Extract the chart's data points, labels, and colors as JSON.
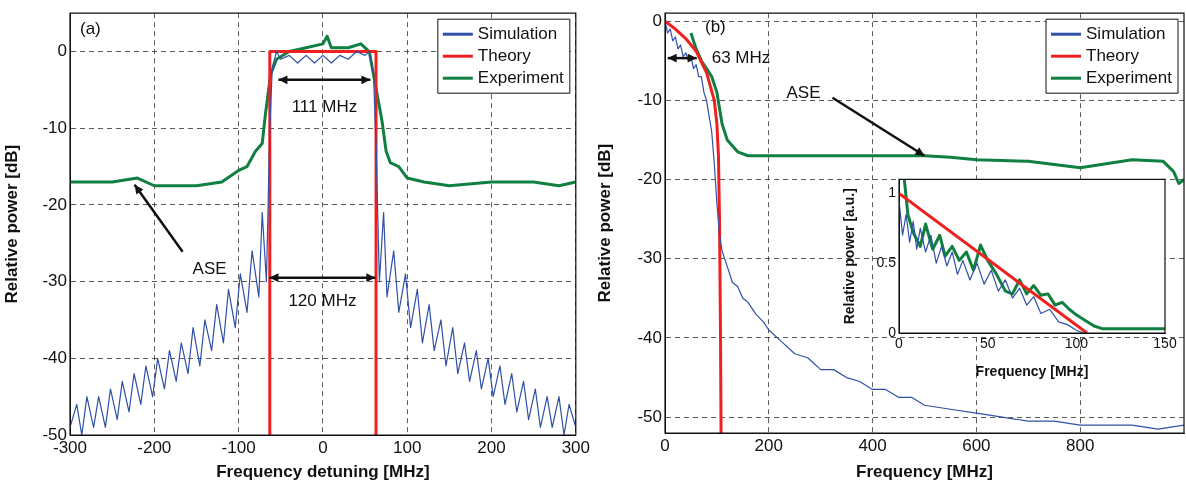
{
  "chart_data": [
    {
      "type": "line",
      "xlabel": "Frequency detuning [MHz]",
      "ylabel": "Relative power [dB]",
      "xlim": [
        -300,
        300
      ],
      "xticks": [
        -300,
        -200,
        -100,
        0,
        100,
        200,
        300
      ],
      "ylim": [
        -50,
        5
      ],
      "yticks": [
        -50,
        -40,
        -30,
        -20,
        -10,
        0
      ],
      "grid": true,
      "legend": "top right",
      "annotations": [
        "(a)",
        "111 MHz",
        "120 MHz",
        "ASE"
      ],
      "series": [
        {
          "name": "Simulation",
          "color": "#3050a8",
          "x": [
            -300,
            -292,
            -286,
            -280,
            -272,
            -266,
            -258,
            -252,
            -244,
            -238,
            -230,
            -224,
            -216,
            -210,
            -202,
            -196,
            -188,
            -182,
            -174,
            -168,
            -160,
            -154,
            -146,
            -140,
            -132,
            -126,
            -118,
            -112,
            -104,
            -98,
            -90,
            -84,
            -76,
            -72,
            -67,
            -63,
            -60,
            -55,
            -50,
            -40,
            -30,
            -20,
            -10,
            0,
            10,
            20,
            30,
            40,
            50,
            55,
            60,
            63,
            67,
            72,
            76,
            84,
            90,
            98,
            104,
            112,
            118,
            126,
            132,
            140,
            146,
            154,
            160,
            168,
            174,
            182,
            188,
            196,
            202,
            210,
            216,
            224,
            230,
            238,
            244,
            252,
            258,
            266,
            272,
            280,
            286,
            292,
            300
          ],
          "values": [
            -49,
            -46,
            -50,
            -45,
            -49,
            -45,
            -49,
            -44,
            -48,
            -43,
            -47,
            -42,
            -46,
            -41,
            -45,
            -40,
            -44,
            -39,
            -43,
            -38,
            -42,
            -36,
            -41,
            -35,
            -39,
            -33,
            -38,
            -31,
            -36,
            -29,
            -34,
            -26,
            -32,
            -21,
            -30,
            -10,
            -2,
            0,
            -1,
            -0.5,
            -1.5,
            -0.5,
            -1.5,
            -0.5,
            -1.5,
            -0.5,
            -1,
            0,
            -0.5,
            0,
            -3,
            -12,
            -30,
            -21,
            -32,
            -26,
            -34,
            -29,
            -36,
            -31,
            -38,
            -33,
            -39,
            -35,
            -41,
            -36,
            -42,
            -38,
            -43,
            -39,
            -44,
            -40,
            -45,
            -41,
            -46,
            -42,
            -47,
            -43,
            -48,
            -44,
            -49,
            -45,
            -49,
            -45,
            -50,
            -46,
            -49
          ]
        },
        {
          "name": "Theory",
          "color": "#ee2020",
          "x": [
            -63,
            -63,
            63,
            63
          ],
          "values": [
            -50,
            0,
            0,
            -50
          ]
        },
        {
          "name": "Experiment",
          "color": "#108040",
          "x": [
            -300,
            -250,
            -220,
            -200,
            -150,
            -120,
            -100,
            -90,
            -80,
            -72,
            -68,
            -62,
            -55,
            -40,
            -20,
            0,
            5,
            10,
            30,
            45,
            55,
            60,
            65,
            70,
            75,
            80,
            90,
            100,
            120,
            150,
            200,
            250,
            280,
            300
          ],
          "values": [
            -17,
            -17,
            -16.5,
            -17.5,
            -17.5,
            -17,
            -15.5,
            -15,
            -13,
            -12,
            -8,
            -3,
            -1,
            0,
            0.5,
            1,
            2,
            0.5,
            0.5,
            1,
            0,
            -3,
            -6,
            -9,
            -13,
            -14.5,
            -15,
            -16.5,
            -17,
            -17.5,
            -17,
            -17,
            -17.5,
            -17
          ]
        }
      ]
    },
    {
      "type": "line",
      "xlabel": "Frequency [MHz]",
      "ylabel": "Relative power [dB]",
      "xlim": [
        0,
        1000
      ],
      "xticks": [
        0,
        200,
        400,
        600,
        800
      ],
      "ylim": [
        -52,
        1
      ],
      "yticks": [
        -50,
        -40,
        -30,
        -20,
        -10,
        0
      ],
      "grid": true,
      "legend": "top right",
      "annotations": [
        "(b)",
        "63 MHz",
        {
          "text": "ASE",
          "x": 500,
          "y": -17
        }
      ],
      "series": [
        {
          "name": "Simulation",
          "color": "#3050a8",
          "x": [
            0,
            5,
            10,
            15,
            20,
            25,
            30,
            35,
            40,
            45,
            50,
            55,
            60,
            65,
            70,
            75,
            80,
            85,
            90,
            95,
            100,
            105,
            110,
            120,
            130,
            140,
            150,
            160,
            175,
            190,
            200,
            225,
            250,
            275,
            300,
            325,
            350,
            375,
            400,
            425,
            450,
            475,
            500,
            550,
            600,
            650,
            700,
            750,
            800,
            850,
            900,
            950,
            1000
          ],
          "values": [
            0,
            -1.5,
            -1,
            -2.5,
            -2,
            -3.5,
            -3,
            -4.5,
            -4,
            -5,
            -4.5,
            -6,
            -5.5,
            -7,
            -7,
            -9,
            -10,
            -12,
            -14,
            -18,
            -23,
            -27,
            -29,
            -31,
            -33,
            -33.5,
            -35,
            -35.5,
            -37,
            -38,
            -39,
            -40.5,
            -42,
            -42.5,
            -44,
            -44,
            -45,
            -45.5,
            -46.5,
            -46.5,
            -47.5,
            -47.5,
            -48.5,
            -49,
            -49.5,
            -50,
            -50.5,
            -50.5,
            -51,
            -51,
            -51,
            -51.5,
            -51
          ]
        },
        {
          "name": "Theory",
          "color": "#ee2020",
          "x": [
            0,
            20,
            40,
            60,
            80,
            95,
            100,
            103,
            105,
            107,
            108
          ],
          "values": [
            0,
            -1,
            -2.2,
            -3.8,
            -6.5,
            -10,
            -13,
            -17,
            -25,
            -40,
            -52
          ]
        },
        {
          "name": "Experiment",
          "color": "#108040",
          "x": [
            50,
            60,
            70,
            80,
            90,
            100,
            110,
            120,
            140,
            160,
            200,
            300,
            400,
            500,
            550,
            600,
            700,
            800,
            850,
            900,
            960,
            980,
            990,
            1000
          ],
          "values": [
            -1.5,
            -3.5,
            -5,
            -6,
            -7,
            -9,
            -13,
            -15,
            -16.5,
            -17,
            -17,
            -17,
            -17,
            -17,
            -17.2,
            -17.5,
            -17.7,
            -18.5,
            -18,
            -17.5,
            -17.7,
            -19,
            -20.5,
            -20
          ]
        }
      ]
    },
    {
      "type": "line",
      "xlabel": "Frequency [MHz]",
      "ylabel": "Relative power [a.u.]",
      "xlim": [
        0,
        150
      ],
      "xticks": [
        0,
        50,
        100,
        150
      ],
      "ylim": [
        0,
        1.1
      ],
      "yticks": [
        0,
        0.5,
        1
      ],
      "series": [
        {
          "color": "#3050a8",
          "x": [
            0,
            2,
            4,
            6,
            8,
            10,
            12,
            15,
            18,
            21,
            24,
            27,
            30,
            33,
            36,
            40,
            44,
            48,
            52,
            56,
            60,
            64,
            68,
            72,
            76,
            80,
            85,
            90,
            95,
            100,
            104
          ],
          "values": [
            0.95,
            0.7,
            0.85,
            0.65,
            0.8,
            0.6,
            0.75,
            0.58,
            0.7,
            0.5,
            0.62,
            0.48,
            0.58,
            0.42,
            0.52,
            0.38,
            0.5,
            0.35,
            0.45,
            0.3,
            0.38,
            0.25,
            0.32,
            0.2,
            0.26,
            0.14,
            0.17,
            0.08,
            0.06,
            0.02,
            0
          ]
        },
        {
          "color": "#ee2020",
          "x": [
            0,
            106
          ],
          "values": [
            1,
            0
          ]
        },
        {
          "color": "#108040",
          "x": [
            3,
            5,
            8,
            12,
            15,
            19,
            23,
            26,
            30,
            34,
            38,
            42,
            46,
            50,
            55,
            60,
            64,
            68,
            72,
            76,
            80,
            84,
            88,
            92,
            96,
            100,
            105,
            110,
            115,
            130,
            150
          ],
          "values": [
            1.1,
            0.85,
            0.72,
            0.62,
            0.78,
            0.6,
            0.7,
            0.55,
            0.62,
            0.52,
            0.58,
            0.45,
            0.63,
            0.52,
            0.42,
            0.3,
            0.28,
            0.38,
            0.28,
            0.34,
            0.27,
            0.28,
            0.2,
            0.22,
            0.17,
            0.13,
            0.09,
            0.05,
            0.03,
            0.03,
            0.03
          ]
        }
      ]
    }
  ]
}
